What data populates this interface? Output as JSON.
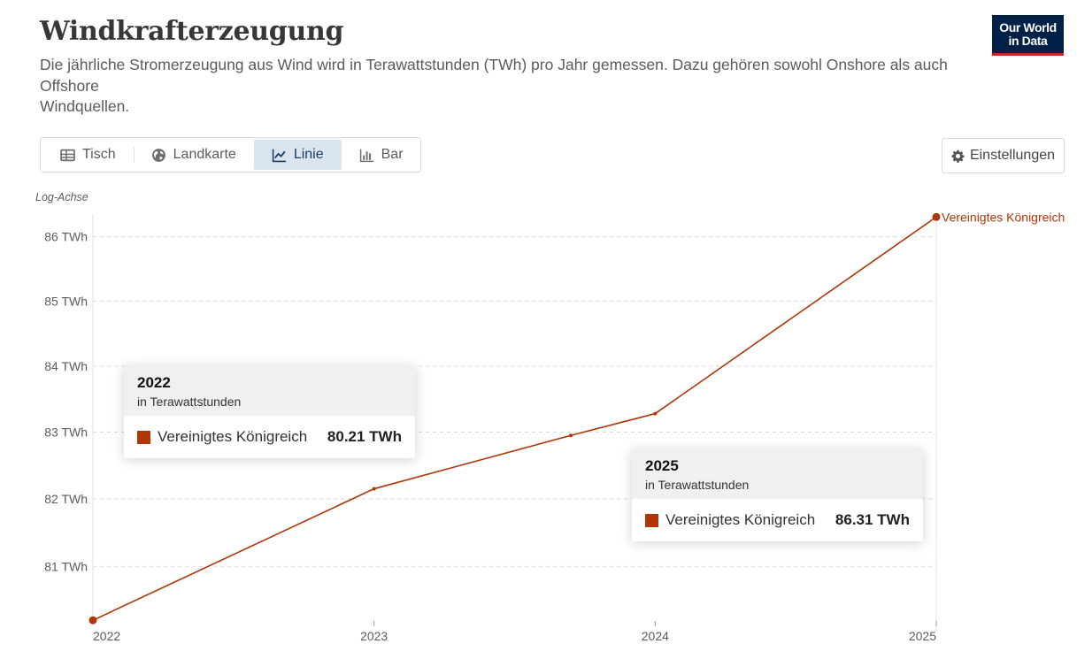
{
  "header": {
    "title": "Windkrafterzeugung",
    "subtitle_line1": "Die jährliche Stromerzeugung aus Wind wird in Terawattstunden (TWh) pro Jahr gemessen. Dazu gehören sowohl Onshore als auch Offshore",
    "subtitle_line2": "Windquellen."
  },
  "logo": {
    "line1": "Our World",
    "line2": "in Data"
  },
  "tabs": [
    {
      "label": "Tisch",
      "icon": "table-icon",
      "active": false
    },
    {
      "label": "Landkarte",
      "icon": "globe-icon",
      "active": false
    },
    {
      "label": "Linie",
      "icon": "line-chart-icon",
      "active": true
    },
    {
      "label": "Bar",
      "icon": "bar-chart-icon",
      "active": false
    }
  ],
  "settings": {
    "label": "Einstellungen",
    "icon": "gear-icon"
  },
  "axis_note": "Log-Achse",
  "colors": {
    "series": "#b13507",
    "active_tab_bg": "#dbe5f0",
    "logo_bg": "#002147",
    "logo_accent": "#ce261e"
  },
  "chart_data": {
    "type": "line",
    "title": "Windkrafterzeugung",
    "yscale": "log",
    "ylim": [
      80.2,
      86.3
    ],
    "yticks": [
      81,
      82,
      83,
      84,
      85,
      86
    ],
    "ytick_labels": [
      "81 TWh",
      "82 TWh",
      "83 TWh",
      "84 TWh",
      "85 TWh",
      "86 TWh"
    ],
    "xticks": [
      "2022",
      "2023",
      "2024",
      "2025"
    ],
    "x": [
      2022,
      2023,
      2023.7,
      2024,
      2025
    ],
    "series": [
      {
        "name": "Vereinigtes Königreich",
        "values": [
          80.21,
          82.15,
          82.95,
          83.28,
          86.31
        ],
        "color": "#b13507"
      }
    ],
    "grid": "horizontal dashed",
    "legend": "end-of-line label"
  },
  "tooltips": [
    {
      "year": "2022",
      "unit": "in Terawattstunden",
      "name": "Vereinigtes Königreich",
      "value": "80.21 TWh"
    },
    {
      "year": "2025",
      "unit": "in Terawattstunden",
      "name": "Vereinigtes Königreich",
      "value": "86.31 TWh"
    }
  ]
}
